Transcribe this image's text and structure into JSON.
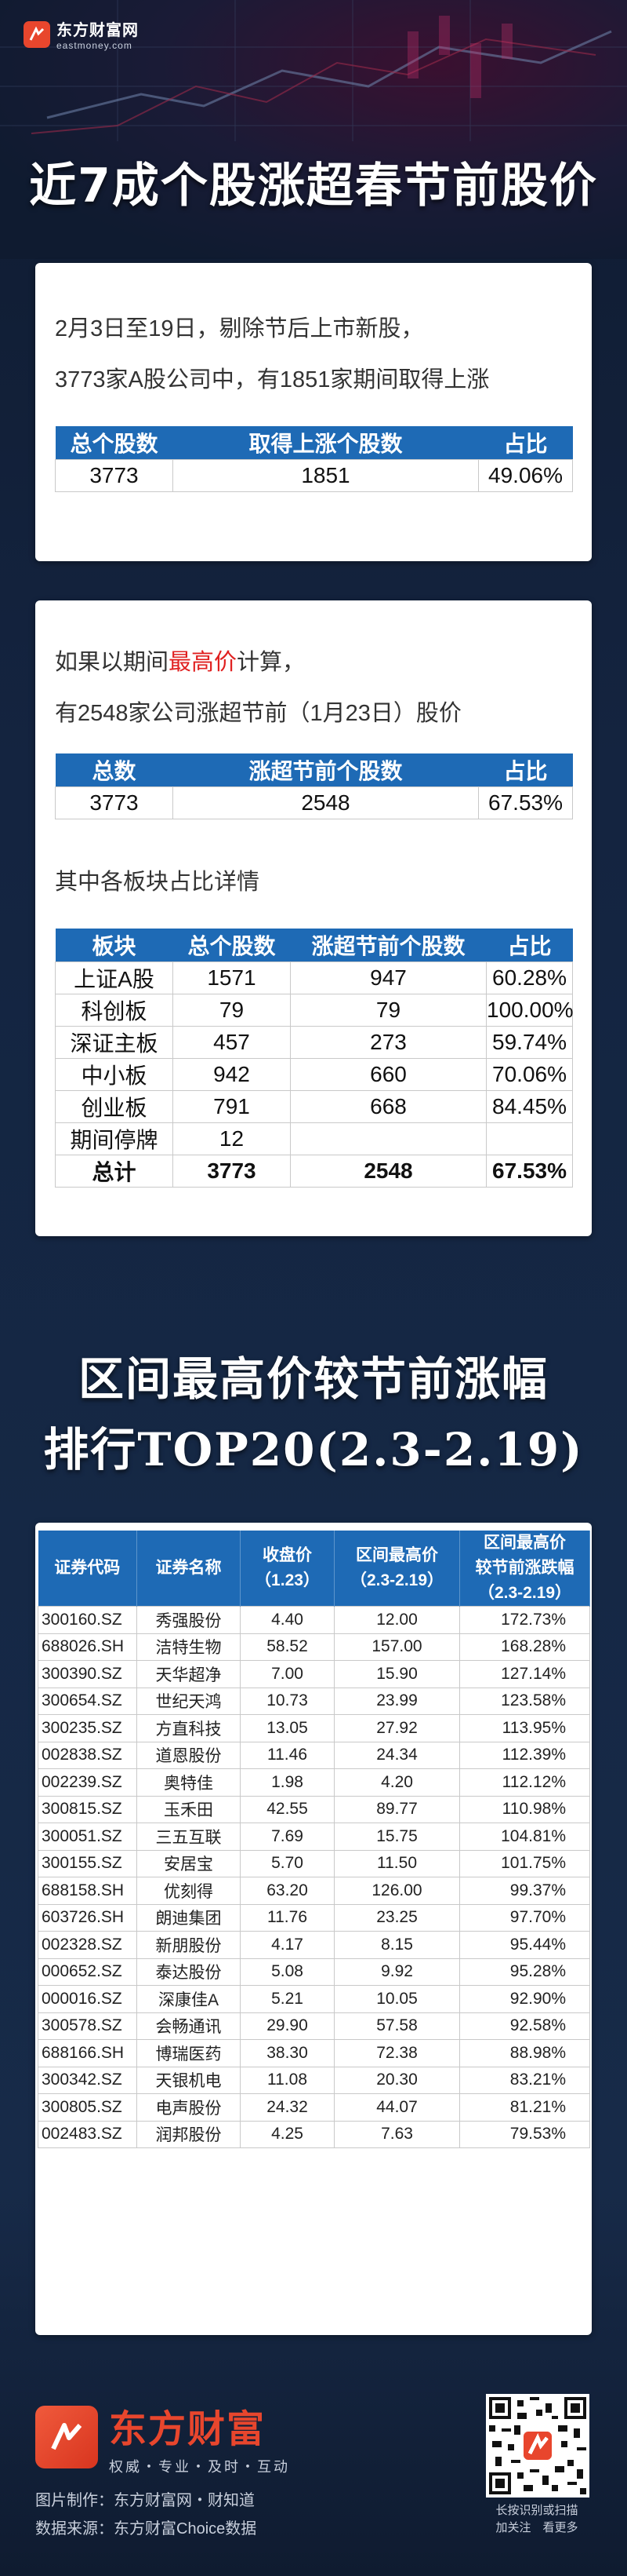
{
  "header": {
    "brand_name": "东方财富网",
    "brand_domain": "eastmoney.com",
    "title": "近7成个股涨超春节前股价"
  },
  "section1": {
    "line1": "2月3日至19日，剔除节后上市新股，",
    "line2": "3773家A股公司中，有1851家期间取得上涨",
    "headers": [
      "总个股数",
      "取得上涨个股数",
      "占比"
    ],
    "row": [
      "3773",
      "1851",
      "49.06%"
    ]
  },
  "section2": {
    "line1_before": "如果以期间",
    "line1_highlight": "最高价",
    "line1_after": "计算，",
    "line2": "有2548家公司涨超节前（1月23日）股价",
    "headers": [
      "总数",
      "涨超节前个股数",
      "占比"
    ],
    "row": [
      "3773",
      "2548",
      "67.53%"
    ],
    "subtitle": "其中各板块占比详情",
    "board_headers": [
      "板块",
      "总个股数",
      "涨超节前个股数",
      "占比"
    ],
    "boards": [
      [
        "上证A股",
        "1571",
        "947",
        "60.28%"
      ],
      [
        "科创板",
        "79",
        "79",
        "100.00%"
      ],
      [
        "深证主板",
        "457",
        "273",
        "59.74%"
      ],
      [
        "中小板",
        "942",
        "660",
        "70.06%"
      ],
      [
        "创业板",
        "791",
        "668",
        "84.45%"
      ],
      [
        "期间停牌",
        "12",
        "",
        ""
      ],
      [
        "总计",
        "3773",
        "2548",
        "67.53%"
      ]
    ]
  },
  "ranking": {
    "title_line1": "区间最高价较节前涨幅",
    "title_line2": "排行TOP20(2.3-2.19)",
    "headers": {
      "code": "证券代码",
      "name": "证券名称",
      "close_line1": "收盘价",
      "close_line2": "（1.23）",
      "high_line1": "区间最高价",
      "high_line2": "（2.3-2.19）",
      "pct_line1": "区间最高价",
      "pct_line2": "较节前涨跌幅",
      "pct_line3": "（2.3-2.19）"
    },
    "rows": [
      [
        "300160.SZ",
        "秀强股份",
        "4.40",
        "12.00",
        "172.73%"
      ],
      [
        "688026.SH",
        "洁特生物",
        "58.52",
        "157.00",
        "168.28%"
      ],
      [
        "300390.SZ",
        "天华超净",
        "7.00",
        "15.90",
        "127.14%"
      ],
      [
        "300654.SZ",
        "世纪天鸿",
        "10.73",
        "23.99",
        "123.58%"
      ],
      [
        "300235.SZ",
        "方直科技",
        "13.05",
        "27.92",
        "113.95%"
      ],
      [
        "002838.SZ",
        "道恩股份",
        "11.46",
        "24.34",
        "112.39%"
      ],
      [
        "002239.SZ",
        "奥特佳",
        "1.98",
        "4.20",
        "112.12%"
      ],
      [
        "300815.SZ",
        "玉禾田",
        "42.55",
        "89.77",
        "110.98%"
      ],
      [
        "300051.SZ",
        "三五互联",
        "7.69",
        "15.75",
        "104.81%"
      ],
      [
        "300155.SZ",
        "安居宝",
        "5.70",
        "11.50",
        "101.75%"
      ],
      [
        "688158.SH",
        "优刻得",
        "63.20",
        "126.00",
        "99.37%"
      ],
      [
        "603726.SH",
        "朗迪集团",
        "11.76",
        "23.25",
        "97.70%"
      ],
      [
        "002328.SZ",
        "新朋股份",
        "4.17",
        "8.15",
        "95.44%"
      ],
      [
        "000652.SZ",
        "泰达股份",
        "5.08",
        "9.92",
        "95.28%"
      ],
      [
        "000016.SZ",
        "深康佳A",
        "5.21",
        "10.05",
        "92.90%"
      ],
      [
        "300578.SZ",
        "会畅通讯",
        "29.90",
        "57.58",
        "92.58%"
      ],
      [
        "688166.SH",
        "博瑞医药",
        "38.30",
        "72.38",
        "88.98%"
      ],
      [
        "300342.SZ",
        "天银机电",
        "11.08",
        "20.30",
        "83.21%"
      ],
      [
        "300805.SZ",
        "电声股份",
        "24.32",
        "44.07",
        "81.21%"
      ],
      [
        "002483.SZ",
        "润邦股份",
        "4.25",
        "7.63",
        "79.53%"
      ]
    ]
  },
  "footer": {
    "brand_name": "东方财富",
    "slogan": "权威・专业・及时・互动",
    "made_by": "图片制作：东方财富网・财知道",
    "source": "数据来源：东方财富Choice数据",
    "qr_line1": "长按识别或扫描",
    "qr_line2": "加关注　看更多"
  },
  "colors": {
    "header_blue": "#1e6ab5",
    "highlight_red": "#e02020",
    "brand_orange": "#e8462d"
  },
  "icons": [
    "eastmoney-logo-icon",
    "qr-code-icon"
  ]
}
